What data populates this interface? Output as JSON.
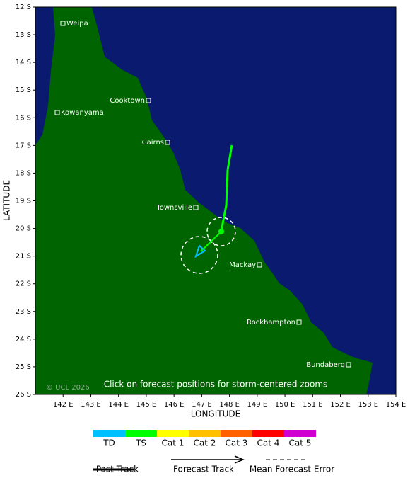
{
  "map": {
    "y_axis_label": "LATITUDE",
    "x_axis_label": "LONGITUDE",
    "lat_ticks": [
      "12 S",
      "13 S",
      "14 S",
      "15 S",
      "16 S",
      "17 S",
      "18 S",
      "19 S",
      "20 S",
      "21 S",
      "22 S",
      "23 S",
      "24 S",
      "25 S",
      "26 S"
    ],
    "lon_ticks": [
      "142 E",
      "143 E",
      "144 E",
      "145 E",
      "146 E",
      "147 E",
      "148 E",
      "149 E",
      "150 E",
      "151 E",
      "152 E",
      "153 E",
      "154 E"
    ],
    "cities": [
      "Weipa",
      "Cooktown",
      "Kowanyama",
      "Cairns",
      "Townsville",
      "Mackay",
      "Rockhampton",
      "Bundaberg"
    ],
    "copyright": "© UCL 2026",
    "note": "Click on forecast positions for storm-centered zooms",
    "land_color": "#006400",
    "ocean_color": "#0a1a6e"
  },
  "legend": {
    "categories": [
      {
        "label": "TD",
        "color": "#00c0ff"
      },
      {
        "label": "TS",
        "color": "#00ff00"
      },
      {
        "label": "Cat 1",
        "color": "#ffff00"
      },
      {
        "label": "Cat 2",
        "color": "#ffc000"
      },
      {
        "label": "Cat 3",
        "color": "#ff6000"
      },
      {
        "label": "Cat 4",
        "color": "#ff0000"
      },
      {
        "label": "Cat 5",
        "color": "#d000d0"
      }
    ],
    "track_types": [
      "Past Track",
      "Forecast Track",
      "Mean Forecast Error"
    ]
  }
}
